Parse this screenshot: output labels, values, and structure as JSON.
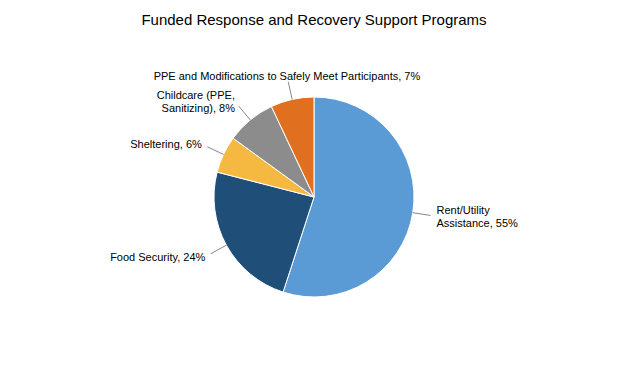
{
  "chart_data": {
    "type": "pie",
    "title": "Funded Response and Recovery Support Programs",
    "categories": [
      "Rent/Utility\nAssistance, 55%",
      "Food Security, 24%",
      "Sheltering, 6%",
      "Childcare (PPE,\nSanitizing), 8%",
      "PPE and Modifications to Safely Meet Participants, 7%"
    ],
    "values": [
      55,
      24,
      6,
      8,
      7
    ],
    "colors": [
      "#5B9BD5",
      "#1F4E79",
      "#F5B942",
      "#8C8C8C",
      "#E07020"
    ]
  }
}
